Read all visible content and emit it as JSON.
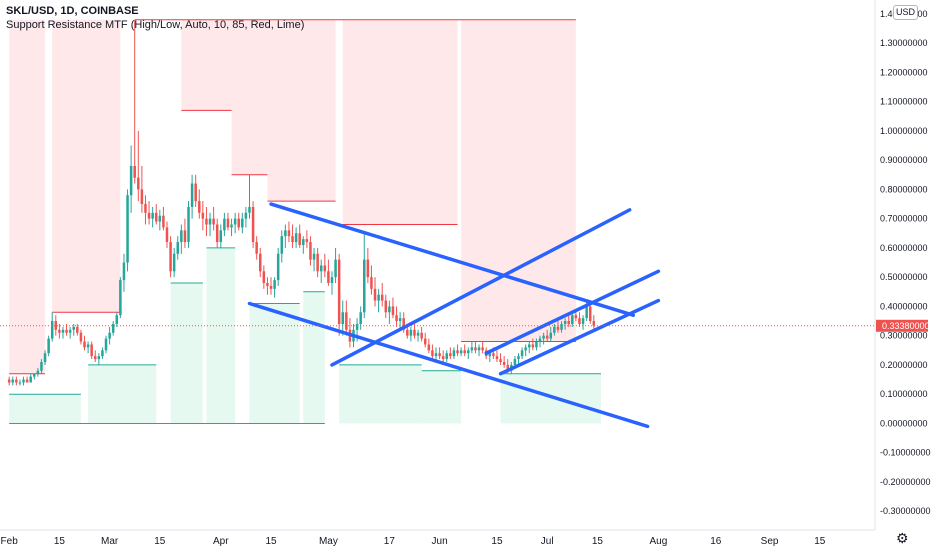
{
  "header": {
    "symbol": "SKL/USD, 1D, COINBASE",
    "indicator": "Support Resistance MTF (High/Low, Auto, 10, 85, Red, Lime)"
  },
  "price_axis": {
    "currency": "USD",
    "current_price_label": "0.33380000",
    "settings_icon": "gear-icon"
  },
  "colors": {
    "resistance": "#f23645",
    "resistance_fill": "#ffd6d9",
    "support": "#22ab94",
    "support_fill": "#d4f5e6",
    "trendline": "#2962ff",
    "candle_up": "#26a69a",
    "candle_down": "#ef5350"
  },
  "chart_data": {
    "type": "candlestick",
    "title": "SKL/USD, 1D, COINBASE",
    "y_ticks": [
      "1.40000000",
      "1.30000000",
      "1.20000000",
      "1.10000000",
      "1.00000000",
      "0.90000000",
      "0.80000000",
      "0.70000000",
      "0.60000000",
      "0.50000000",
      "0.40000000",
      "0.30000000",
      "0.20000000",
      "0.10000000",
      "0.00000000",
      "-0.10000000",
      "-0.20000000",
      "-0.30000000"
    ],
    "y_tick_values": [
      1.4,
      1.3,
      1.2,
      1.1,
      1.0,
      0.9,
      0.8,
      0.7,
      0.6,
      0.5,
      0.4,
      0.3,
      0.2,
      0.1,
      0.0,
      -0.1,
      -0.2,
      -0.3
    ],
    "x_ticks": [
      "Feb",
      "15",
      "Mar",
      "15",
      "Apr",
      "15",
      "May",
      "17",
      "Jun",
      "15",
      "Jul",
      "15",
      "Aug",
      "16",
      "Sep",
      "15"
    ],
    "x_tick_days": [
      0,
      14,
      28,
      42,
      59,
      73,
      89,
      106,
      120,
      136,
      150,
      164,
      181,
      197,
      212,
      226
    ],
    "ylim": [
      -0.33,
      1.42
    ],
    "last_price": 0.3338,
    "candles": [
      [
        0,
        0.15,
        0.16,
        0.13,
        0.14
      ],
      [
        1,
        0.14,
        0.16,
        0.13,
        0.15
      ],
      [
        2,
        0.15,
        0.16,
        0.13,
        0.14
      ],
      [
        3,
        0.14,
        0.15,
        0.13,
        0.14
      ],
      [
        4,
        0.14,
        0.16,
        0.13,
        0.15
      ],
      [
        5,
        0.15,
        0.16,
        0.14,
        0.14
      ],
      [
        6,
        0.14,
        0.17,
        0.14,
        0.16
      ],
      [
        7,
        0.16,
        0.17,
        0.15,
        0.17
      ],
      [
        8,
        0.17,
        0.19,
        0.16,
        0.18
      ],
      [
        9,
        0.18,
        0.22,
        0.17,
        0.21
      ],
      [
        10,
        0.21,
        0.25,
        0.2,
        0.24
      ],
      [
        11,
        0.24,
        0.3,
        0.23,
        0.29
      ],
      [
        12,
        0.29,
        0.38,
        0.28,
        0.35
      ],
      [
        13,
        0.35,
        0.37,
        0.3,
        0.32
      ],
      [
        14,
        0.32,
        0.34,
        0.29,
        0.31
      ],
      [
        15,
        0.31,
        0.33,
        0.29,
        0.32
      ],
      [
        16,
        0.32,
        0.34,
        0.3,
        0.31
      ],
      [
        17,
        0.31,
        0.33,
        0.29,
        0.32
      ],
      [
        18,
        0.32,
        0.34,
        0.3,
        0.33
      ],
      [
        19,
        0.33,
        0.34,
        0.3,
        0.31
      ],
      [
        20,
        0.31,
        0.32,
        0.27,
        0.28
      ],
      [
        21,
        0.28,
        0.3,
        0.25,
        0.26
      ],
      [
        22,
        0.26,
        0.28,
        0.24,
        0.27
      ],
      [
        23,
        0.27,
        0.28,
        0.22,
        0.23
      ],
      [
        24,
        0.23,
        0.25,
        0.21,
        0.22
      ],
      [
        25,
        0.22,
        0.24,
        0.2,
        0.23
      ],
      [
        26,
        0.23,
        0.26,
        0.22,
        0.25
      ],
      [
        27,
        0.25,
        0.3,
        0.24,
        0.29
      ],
      [
        28,
        0.29,
        0.33,
        0.27,
        0.31
      ],
      [
        29,
        0.31,
        0.35,
        0.3,
        0.34
      ],
      [
        30,
        0.34,
        0.38,
        0.33,
        0.37
      ],
      [
        31,
        0.37,
        0.5,
        0.36,
        0.49
      ],
      [
        32,
        0.49,
        0.58,
        0.45,
        0.55
      ],
      [
        33,
        0.55,
        0.8,
        0.52,
        0.78
      ],
      [
        34,
        0.78,
        0.95,
        0.72,
        0.88
      ],
      [
        35,
        0.88,
        1.38,
        0.82,
        0.84
      ],
      [
        36,
        0.84,
        1.0,
        0.76,
        0.8
      ],
      [
        37,
        0.8,
        0.88,
        0.72,
        0.75
      ],
      [
        38,
        0.75,
        0.78,
        0.68,
        0.72
      ],
      [
        39,
        0.72,
        0.76,
        0.68,
        0.7
      ],
      [
        40,
        0.7,
        0.74,
        0.67,
        0.72
      ],
      [
        41,
        0.72,
        0.75,
        0.68,
        0.69
      ],
      [
        42,
        0.69,
        0.73,
        0.66,
        0.71
      ],
      [
        43,
        0.71,
        0.74,
        0.66,
        0.67
      ],
      [
        44,
        0.67,
        0.69,
        0.6,
        0.62
      ],
      [
        45,
        0.62,
        0.64,
        0.5,
        0.52
      ],
      [
        46,
        0.52,
        0.6,
        0.5,
        0.58
      ],
      [
        47,
        0.58,
        0.64,
        0.56,
        0.62
      ],
      [
        48,
        0.62,
        0.68,
        0.58,
        0.66
      ],
      [
        49,
        0.66,
        0.7,
        0.6,
        0.62
      ],
      [
        50,
        0.62,
        0.76,
        0.6,
        0.74
      ],
      [
        51,
        0.74,
        0.85,
        0.7,
        0.82
      ],
      [
        52,
        0.82,
        0.85,
        0.74,
        0.76
      ],
      [
        53,
        0.76,
        0.8,
        0.7,
        0.72
      ],
      [
        54,
        0.72,
        0.76,
        0.66,
        0.7
      ],
      [
        55,
        0.7,
        0.74,
        0.64,
        0.68
      ],
      [
        56,
        0.68,
        0.72,
        0.64,
        0.7
      ],
      [
        57,
        0.7,
        0.74,
        0.66,
        0.68
      ],
      [
        58,
        0.68,
        0.7,
        0.6,
        0.62
      ],
      [
        59,
        0.62,
        0.68,
        0.6,
        0.66
      ],
      [
        60,
        0.66,
        0.72,
        0.64,
        0.7
      ],
      [
        61,
        0.7,
        0.72,
        0.66,
        0.67
      ],
      [
        62,
        0.67,
        0.7,
        0.64,
        0.68
      ],
      [
        63,
        0.68,
        0.72,
        0.65,
        0.7
      ],
      [
        64,
        0.7,
        0.72,
        0.66,
        0.67
      ],
      [
        65,
        0.67,
        0.72,
        0.65,
        0.7
      ],
      [
        66,
        0.7,
        0.74,
        0.67,
        0.72
      ],
      [
        67,
        0.72,
        0.85,
        0.7,
        0.74
      ],
      [
        68,
        0.74,
        0.76,
        0.6,
        0.62
      ],
      [
        69,
        0.62,
        0.64,
        0.56,
        0.58
      ],
      [
        70,
        0.58,
        0.6,
        0.5,
        0.52
      ],
      [
        71,
        0.52,
        0.54,
        0.46,
        0.48
      ],
      [
        72,
        0.48,
        0.5,
        0.44,
        0.47
      ],
      [
        73,
        0.47,
        0.5,
        0.44,
        0.46
      ],
      [
        74,
        0.46,
        0.5,
        0.43,
        0.49
      ],
      [
        75,
        0.49,
        0.6,
        0.47,
        0.58
      ],
      [
        76,
        0.58,
        0.66,
        0.55,
        0.64
      ],
      [
        77,
        0.64,
        0.68,
        0.6,
        0.66
      ],
      [
        78,
        0.66,
        0.69,
        0.62,
        0.64
      ],
      [
        79,
        0.64,
        0.68,
        0.6,
        0.62
      ],
      [
        80,
        0.62,
        0.67,
        0.6,
        0.65
      ],
      [
        81,
        0.65,
        0.68,
        0.6,
        0.61
      ],
      [
        82,
        0.61,
        0.64,
        0.58,
        0.63
      ],
      [
        83,
        0.63,
        0.66,
        0.6,
        0.62
      ],
      [
        84,
        0.62,
        0.64,
        0.54,
        0.56
      ],
      [
        85,
        0.56,
        0.6,
        0.52,
        0.58
      ],
      [
        86,
        0.58,
        0.6,
        0.5,
        0.52
      ],
      [
        87,
        0.52,
        0.56,
        0.48,
        0.54
      ],
      [
        88,
        0.54,
        0.58,
        0.5,
        0.52
      ],
      [
        89,
        0.52,
        0.56,
        0.47,
        0.48
      ],
      [
        90,
        0.48,
        0.52,
        0.44,
        0.5
      ],
      [
        91,
        0.5,
        0.6,
        0.48,
        0.56
      ],
      [
        92,
        0.56,
        0.58,
        0.3,
        0.34
      ],
      [
        93,
        0.34,
        0.42,
        0.3,
        0.38
      ],
      [
        94,
        0.38,
        0.42,
        0.3,
        0.32
      ],
      [
        95,
        0.32,
        0.36,
        0.26,
        0.28
      ],
      [
        96,
        0.28,
        0.34,
        0.26,
        0.32
      ],
      [
        97,
        0.32,
        0.36,
        0.28,
        0.34
      ],
      [
        98,
        0.34,
        0.4,
        0.32,
        0.38
      ],
      [
        99,
        0.38,
        0.65,
        0.36,
        0.56
      ],
      [
        100,
        0.56,
        0.6,
        0.48,
        0.5
      ],
      [
        101,
        0.5,
        0.54,
        0.44,
        0.46
      ],
      [
        102,
        0.46,
        0.5,
        0.4,
        0.42
      ],
      [
        103,
        0.42,
        0.46,
        0.38,
        0.44
      ],
      [
        104,
        0.44,
        0.48,
        0.4,
        0.42
      ],
      [
        105,
        0.42,
        0.44,
        0.36,
        0.38
      ],
      [
        106,
        0.38,
        0.42,
        0.34,
        0.4
      ],
      [
        107,
        0.4,
        0.43,
        0.36,
        0.37
      ],
      [
        108,
        0.37,
        0.4,
        0.33,
        0.35
      ],
      [
        109,
        0.35,
        0.38,
        0.32,
        0.36
      ],
      [
        110,
        0.36,
        0.38,
        0.31,
        0.32
      ],
      [
        111,
        0.32,
        0.34,
        0.29,
        0.3
      ],
      [
        112,
        0.3,
        0.33,
        0.28,
        0.32
      ],
      [
        113,
        0.32,
        0.34,
        0.29,
        0.3
      ],
      [
        114,
        0.3,
        0.32,
        0.28,
        0.31
      ],
      [
        115,
        0.31,
        0.33,
        0.28,
        0.29
      ],
      [
        116,
        0.29,
        0.31,
        0.26,
        0.27
      ],
      [
        117,
        0.27,
        0.29,
        0.24,
        0.25
      ],
      [
        118,
        0.25,
        0.27,
        0.22,
        0.23
      ],
      [
        119,
        0.23,
        0.26,
        0.21,
        0.24
      ],
      [
        120,
        0.24,
        0.26,
        0.22,
        0.23
      ],
      [
        121,
        0.23,
        0.25,
        0.21,
        0.22
      ],
      [
        122,
        0.22,
        0.25,
        0.21,
        0.24
      ],
      [
        123,
        0.24,
        0.26,
        0.22,
        0.23
      ],
      [
        124,
        0.23,
        0.26,
        0.22,
        0.25
      ],
      [
        125,
        0.25,
        0.27,
        0.23,
        0.24
      ],
      [
        126,
        0.24,
        0.26,
        0.23,
        0.25
      ],
      [
        127,
        0.25,
        0.27,
        0.23,
        0.24
      ],
      [
        128,
        0.24,
        0.26,
        0.22,
        0.25
      ],
      [
        129,
        0.25,
        0.28,
        0.24,
        0.26
      ],
      [
        130,
        0.26,
        0.28,
        0.24,
        0.25
      ],
      [
        131,
        0.25,
        0.27,
        0.23,
        0.26
      ],
      [
        132,
        0.26,
        0.28,
        0.24,
        0.25
      ],
      [
        133,
        0.25,
        0.26,
        0.22,
        0.23
      ],
      [
        134,
        0.23,
        0.25,
        0.21,
        0.24
      ],
      [
        135,
        0.24,
        0.26,
        0.22,
        0.23
      ],
      [
        136,
        0.23,
        0.25,
        0.21,
        0.22
      ],
      [
        137,
        0.22,
        0.24,
        0.2,
        0.21
      ],
      [
        138,
        0.21,
        0.23,
        0.19,
        0.2
      ],
      [
        139,
        0.2,
        0.22,
        0.17,
        0.18
      ],
      [
        140,
        0.18,
        0.21,
        0.17,
        0.2
      ],
      [
        141,
        0.2,
        0.23,
        0.19,
        0.22
      ],
      [
        142,
        0.22,
        0.24,
        0.2,
        0.23
      ],
      [
        143,
        0.23,
        0.26,
        0.22,
        0.25
      ],
      [
        144,
        0.25,
        0.27,
        0.23,
        0.26
      ],
      [
        145,
        0.26,
        0.28,
        0.24,
        0.27
      ],
      [
        146,
        0.27,
        0.29,
        0.25,
        0.26
      ],
      [
        147,
        0.26,
        0.29,
        0.25,
        0.28
      ],
      [
        148,
        0.28,
        0.3,
        0.26,
        0.29
      ],
      [
        149,
        0.29,
        0.31,
        0.27,
        0.3
      ],
      [
        150,
        0.3,
        0.32,
        0.28,
        0.29
      ],
      [
        151,
        0.29,
        0.33,
        0.28,
        0.31
      ],
      [
        152,
        0.31,
        0.34,
        0.3,
        0.33
      ],
      [
        153,
        0.33,
        0.35,
        0.31,
        0.32
      ],
      [
        154,
        0.32,
        0.35,
        0.31,
        0.34
      ],
      [
        155,
        0.34,
        0.36,
        0.32,
        0.35
      ],
      [
        156,
        0.35,
        0.37,
        0.33,
        0.34
      ],
      [
        157,
        0.34,
        0.38,
        0.33,
        0.37
      ],
      [
        158,
        0.37,
        0.39,
        0.35,
        0.36
      ],
      [
        159,
        0.36,
        0.38,
        0.33,
        0.34
      ],
      [
        160,
        0.34,
        0.37,
        0.32,
        0.36
      ],
      [
        161,
        0.36,
        0.42,
        0.35,
        0.4
      ],
      [
        162,
        0.4,
        0.41,
        0.34,
        0.35
      ],
      [
        163,
        0.35,
        0.37,
        0.32,
        0.3338
      ]
    ],
    "support_resistance": {
      "resistance_levels": [
        {
          "value": 0.17,
          "from": 0,
          "to": 10
        },
        {
          "value": 0.38,
          "from": 12,
          "to": 31
        },
        {
          "value": 1.38,
          "from": 35,
          "to": 158
        },
        {
          "value": 1.07,
          "from": 48,
          "to": 62
        },
        {
          "value": 0.85,
          "from": 62,
          "to": 72
        },
        {
          "value": 0.76,
          "from": 72,
          "to": 91
        },
        {
          "value": 0.68,
          "from": 93,
          "to": 125
        },
        {
          "value": 0.28,
          "from": 126,
          "to": 158
        }
      ],
      "support_levels": [
        {
          "value": 0.0,
          "from": 0,
          "to": 88
        },
        {
          "value": 0.1,
          "from": 0,
          "to": 20
        },
        {
          "value": 0.2,
          "from": 22,
          "to": 41
        },
        {
          "value": 0.48,
          "from": 45,
          "to": 54
        },
        {
          "value": 0.6,
          "from": 55,
          "to": 63
        },
        {
          "value": 0.41,
          "from": 67,
          "to": 81
        },
        {
          "value": 0.45,
          "from": 82,
          "to": 88
        },
        {
          "value": 0.2,
          "from": 92,
          "to": 115
        },
        {
          "value": 0.18,
          "from": 115,
          "to": 126
        },
        {
          "value": 0.17,
          "from": 137,
          "to": 165
        }
      ]
    },
    "trendlines": [
      {
        "x1": 73,
        "y1": 0.75,
        "x2": 174,
        "y2": 0.37
      },
      {
        "x1": 67,
        "y1": 0.41,
        "x2": 178,
        "y2": -0.01
      },
      {
        "x1": 90,
        "y1": 0.2,
        "x2": 173,
        "y2": 0.73
      },
      {
        "x1": 133,
        "y1": 0.24,
        "x2": 181,
        "y2": 0.52
      },
      {
        "x1": 137,
        "y1": 0.17,
        "x2": 181,
        "y2": 0.42
      }
    ]
  }
}
